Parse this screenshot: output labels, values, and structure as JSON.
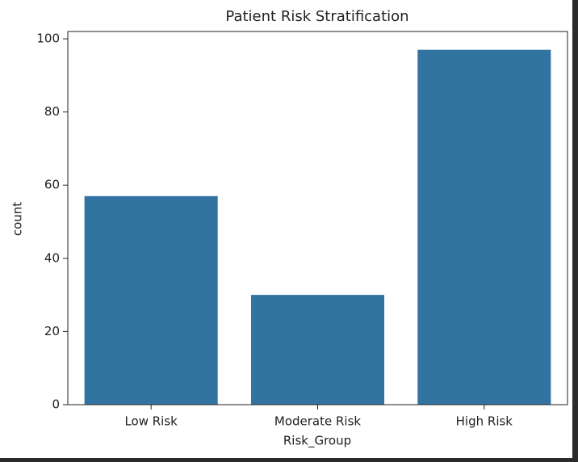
{
  "chart_data": {
    "type": "bar",
    "title": "Patient Risk Stratification",
    "x_label": "Risk_Group",
    "y_label": "count",
    "categories": [
      "Low Risk",
      "Moderate Risk",
      "High Risk"
    ],
    "values": [
      57,
      30,
      97
    ],
    "color": "#3274a1",
    "ylim": [
      0,
      102
    ],
    "yticks": [
      0,
      20,
      40,
      60,
      80,
      100
    ],
    "grid": false
  }
}
